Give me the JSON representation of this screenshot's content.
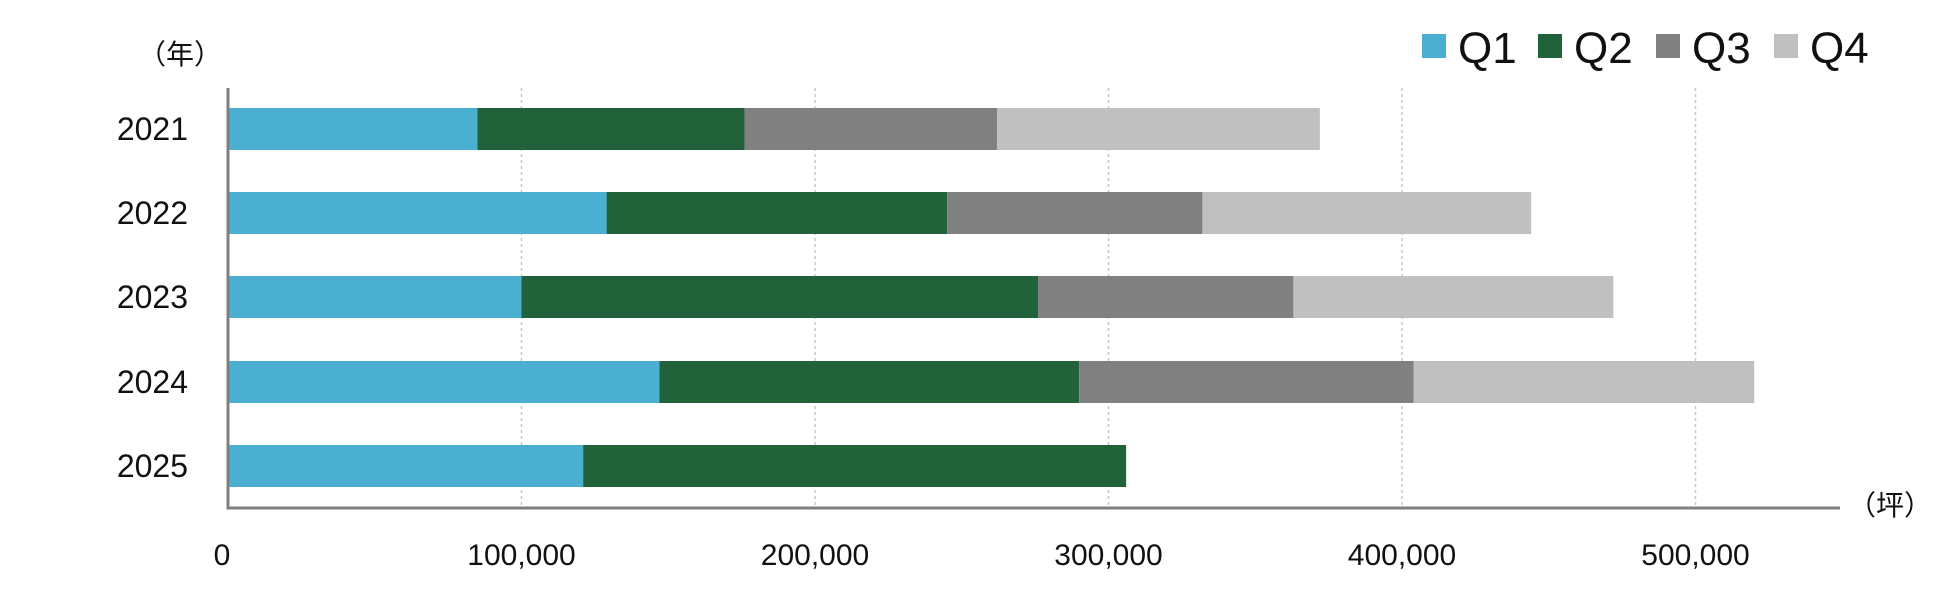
{
  "chart_data": {
    "type": "bar",
    "orientation": "horizontal",
    "stacked": true,
    "categories": [
      "2021",
      "2022",
      "2023",
      "2024",
      "2025"
    ],
    "series": [
      {
        "name": "Q1",
        "color": "#4bafd2",
        "values": [
          85000,
          129000,
          100000,
          147000,
          121000
        ]
      },
      {
        "name": "Q2",
        "color": "#21623b",
        "values": [
          91000,
          116000,
          176000,
          143000,
          185000
        ]
      },
      {
        "name": "Q3",
        "color": "#808080",
        "values": [
          86000,
          87000,
          87000,
          114000,
          null
        ]
      },
      {
        "name": "Q4",
        "color": "#c0c0c0",
        "values": [
          110000,
          112000,
          109000,
          116000,
          null
        ]
      }
    ],
    "x_ticks": [
      "0",
      "100,000",
      "200,000",
      "300,000",
      "400,000",
      "500,000"
    ],
    "x_tick_values": [
      0,
      100000,
      200000,
      300000,
      400000,
      500000
    ],
    "xlim": [
      0,
      550000
    ],
    "y_unit_label": "（年）",
    "x_unit_label": "（坪）",
    "grid": "vertical-dotted",
    "legend_position": "top-right"
  }
}
